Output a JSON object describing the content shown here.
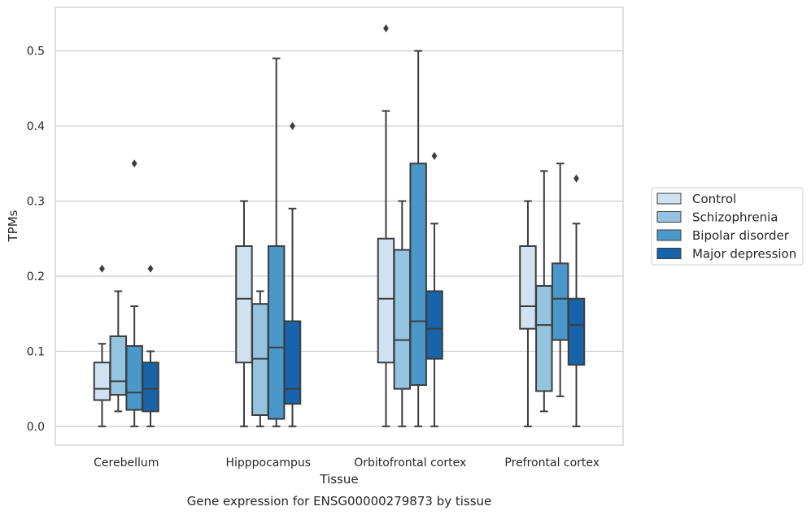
{
  "chart_data": {
    "type": "box",
    "title": "",
    "xlabel": "Tissue",
    "ylabel": "TPMs",
    "caption": "Gene expression for ENSG00000279873 by tissue",
    "ylim": [
      -0.025,
      0.558
    ],
    "yticks": [
      0.0,
      0.1,
      0.2,
      0.3,
      0.4,
      0.5
    ],
    "ytick_labels": [
      "0.0",
      "0.1",
      "0.2",
      "0.3",
      "0.4",
      "0.5"
    ],
    "grid": "horizontal",
    "legend_position": "right",
    "categories": [
      "Cerebellum",
      "Hipppocampus",
      "Orbitofrontal cortex",
      "Prefrontal cortex"
    ],
    "series": [
      {
        "name": "Control",
        "color": "#d0e1f2",
        "boxes": [
          {
            "whislo": 0.0,
            "q1": 0.035,
            "med": 0.05,
            "q3": 0.085,
            "whishi": 0.11,
            "fliers": [
              0.21
            ]
          },
          {
            "whislo": 0.0,
            "q1": 0.085,
            "med": 0.17,
            "q3": 0.24,
            "whishi": 0.3,
            "fliers": []
          },
          {
            "whislo": 0.0,
            "q1": 0.085,
            "med": 0.17,
            "q3": 0.25,
            "whishi": 0.42,
            "fliers": [
              0.53
            ]
          },
          {
            "whislo": 0.0,
            "q1": 0.13,
            "med": 0.16,
            "q3": 0.24,
            "whishi": 0.3,
            "fliers": []
          }
        ]
      },
      {
        "name": "Schizophrenia",
        "color": "#94c4df",
        "boxes": [
          {
            "whislo": 0.02,
            "q1": 0.042,
            "med": 0.06,
            "q3": 0.12,
            "whishi": 0.18,
            "fliers": []
          },
          {
            "whislo": 0.0,
            "q1": 0.015,
            "med": 0.09,
            "q3": 0.163,
            "whishi": 0.18,
            "fliers": []
          },
          {
            "whislo": 0.0,
            "q1": 0.05,
            "med": 0.115,
            "q3": 0.235,
            "whishi": 0.3,
            "fliers": []
          },
          {
            "whislo": 0.02,
            "q1": 0.047,
            "med": 0.135,
            "q3": 0.187,
            "whishi": 0.34,
            "fliers": []
          }
        ]
      },
      {
        "name": "Bipolar disorder",
        "color": "#4a98c9",
        "boxes": [
          {
            "whislo": 0.0,
            "q1": 0.022,
            "med": 0.045,
            "q3": 0.107,
            "whishi": 0.16,
            "fliers": [
              0.35
            ]
          },
          {
            "whislo": 0.0,
            "q1": 0.01,
            "med": 0.105,
            "q3": 0.24,
            "whishi": 0.49,
            "fliers": []
          },
          {
            "whislo": 0.0,
            "q1": 0.055,
            "med": 0.14,
            "q3": 0.35,
            "whishi": 0.5,
            "fliers": []
          },
          {
            "whislo": 0.04,
            "q1": 0.115,
            "med": 0.17,
            "q3": 0.217,
            "whishi": 0.35,
            "fliers": []
          }
        ]
      },
      {
        "name": "Major depression",
        "color": "#1764ab",
        "boxes": [
          {
            "whislo": 0.0,
            "q1": 0.02,
            "med": 0.05,
            "q3": 0.085,
            "whishi": 0.1,
            "fliers": [
              0.21
            ]
          },
          {
            "whislo": 0.0,
            "q1": 0.03,
            "med": 0.05,
            "q3": 0.14,
            "whishi": 0.29,
            "fliers": [
              0.4
            ]
          },
          {
            "whislo": 0.0,
            "q1": 0.09,
            "med": 0.13,
            "q3": 0.18,
            "whishi": 0.27,
            "fliers": [
              0.36
            ]
          },
          {
            "whislo": 0.0,
            "q1": 0.082,
            "med": 0.135,
            "q3": 0.17,
            "whishi": 0.27,
            "fliers": [
              0.33
            ]
          }
        ]
      }
    ]
  }
}
